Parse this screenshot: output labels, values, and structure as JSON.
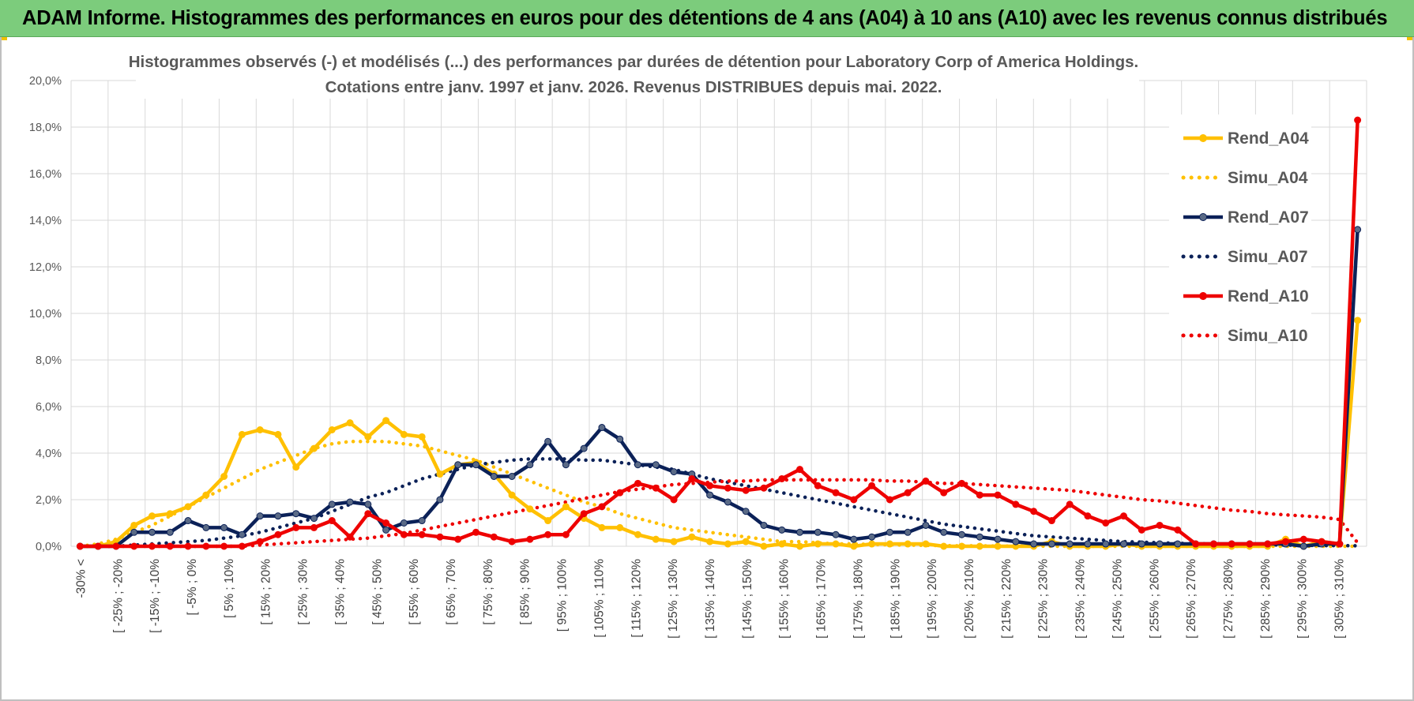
{
  "banner": {
    "title": "ADAM Informe. Histogrammes des performances en euros pour des détentions de 4 ans (A04) à 10 ans (A10) avec les revenus connus distribués"
  },
  "colors": {
    "banner_bg": "#7ccc7c",
    "a04": "#ffc000",
    "a07": "#0b2158",
    "a07_marker": "#5a6a86",
    "a10": "#ee0000",
    "grid": "#d9d9d9",
    "text": "#595959"
  },
  "chart_data": {
    "type": "line",
    "title": [
      "Histogrammes observés (-) et modélisés (...) des performances par durées de détention pour Laboratory Corp of America Holdings.",
      "Cotations entre janv. 1997 et janv. 2026. Revenus DISTRIBUES depuis mai. 2022."
    ],
    "ylim": [
      0,
      20
    ],
    "y_ticks": [
      "0,0%",
      "2,0%",
      "4,0%",
      "6,0%",
      "8,0%",
      "10,0%",
      "12,0%",
      "14,0%",
      "16,0%",
      "18,0%",
      "20,0%"
    ],
    "y_unit": "%",
    "grid": true,
    "legend_position": "right",
    "x_tick_labels": [
      "-30% <",
      "[ -25% ; -20%",
      "[ -15% ; -10%",
      "[ -5% ; 0%",
      "[ 5% ; 10%",
      "[ 15% ; 20%",
      "[ 25% ; 30%",
      "[ 35% ; 40%",
      "[ 45% ; 50%",
      "[ 55% ; 60%",
      "[ 65% ; 70%",
      "[ 75% ; 80%",
      "[ 85% ; 90%",
      "[ 95% ; 100%",
      "[ 105% ; 110%",
      "[ 115% ; 120%",
      "[ 125% ; 130%",
      "[ 135% ; 140%",
      "[ 145% ; 150%",
      "[ 155% ; 160%",
      "[ 165% ; 170%",
      "[ 175% ; 180%",
      "[ 185% ; 190%",
      "[ 195% ; 200%",
      "[ 205% ; 210%",
      "[ 215% ; 220%",
      "[ 225% ; 230%",
      "[ 235% ; 240%",
      "[ 245% ; 250%",
      "[ 255% ; 260%",
      "[ 265% ; 270%",
      "[ 275% ; 280%",
      "[ 285% ; 290%",
      "[ 295% ; 300%",
      "[ 305% ; 310%"
    ],
    "series": [
      {
        "name": "Rend_A04",
        "style": "solid-markers",
        "color": "#ffc000",
        "values": [
          0.0,
          0.0,
          0.2,
          0.9,
          1.3,
          1.4,
          1.7,
          2.2,
          3.0,
          4.8,
          5.0,
          4.8,
          3.4,
          4.2,
          5.0,
          5.3,
          4.7,
          5.4,
          4.8,
          4.7,
          3.1,
          3.5,
          3.6,
          3.1,
          2.2,
          1.6,
          1.1,
          1.7,
          1.2,
          0.8,
          0.8,
          0.5,
          0.3,
          0.2,
          0.4,
          0.2,
          0.1,
          0.2,
          0.0,
          0.1,
          0.0,
          0.1,
          0.1,
          0.0,
          0.1,
          0.1,
          0.1,
          0.1,
          0.0,
          0.0,
          0.0,
          0.0,
          0.0,
          0.0,
          0.2,
          0.0,
          0.0,
          0.0,
          0.1,
          0.0,
          0.0,
          0.0,
          0.0,
          0.0,
          0.0,
          0.0,
          0.0,
          0.3,
          0.0,
          0.2,
          0.1,
          9.7
        ]
      },
      {
        "name": "Simu_A04",
        "style": "dotted",
        "color": "#ffc000",
        "values": [
          0.0,
          0.1,
          0.3,
          0.6,
          0.9,
          1.3,
          1.7,
          2.1,
          2.5,
          2.9,
          3.3,
          3.6,
          3.9,
          4.2,
          4.4,
          4.5,
          4.5,
          4.5,
          4.4,
          4.3,
          4.1,
          3.9,
          3.7,
          3.4,
          3.1,
          2.8,
          2.5,
          2.2,
          1.9,
          1.7,
          1.4,
          1.2,
          1.0,
          0.8,
          0.7,
          0.6,
          0.5,
          0.4,
          0.3,
          0.2,
          0.2,
          0.15,
          0.1,
          0.1,
          0.08,
          0.06,
          0.05,
          0.04,
          0.03,
          0.02,
          0.02,
          0.01,
          0.01,
          0.01,
          0.0,
          0.0,
          0.0,
          0.0,
          0.0,
          0.0,
          0.0,
          0.0,
          0.0,
          0.0,
          0.0,
          0.0,
          0.0,
          0.0,
          0.0,
          0.0,
          0.0,
          0.0
        ]
      },
      {
        "name": "Rend_A07",
        "style": "solid-markers",
        "color": "#0b2158",
        "values": [
          0.0,
          0.0,
          0.0,
          0.6,
          0.6,
          0.6,
          1.1,
          0.8,
          0.8,
          0.5,
          1.3,
          1.3,
          1.4,
          1.2,
          1.8,
          1.9,
          1.8,
          0.7,
          1.0,
          1.1,
          2.0,
          3.5,
          3.5,
          3.0,
          3.0,
          3.5,
          4.5,
          3.5,
          4.2,
          5.1,
          4.6,
          3.5,
          3.5,
          3.2,
          3.1,
          2.2,
          1.9,
          1.5,
          0.9,
          0.7,
          0.6,
          0.6,
          0.5,
          0.3,
          0.4,
          0.6,
          0.6,
          0.9,
          0.6,
          0.5,
          0.4,
          0.3,
          0.2,
          0.1,
          0.1,
          0.1,
          0.1,
          0.1,
          0.1,
          0.1,
          0.1,
          0.1,
          0.1,
          0.1,
          0.1,
          0.1,
          0.1,
          0.1,
          0.0,
          0.1,
          0.1,
          13.6
        ]
      },
      {
        "name": "Simu_A07",
        "style": "dotted",
        "color": "#0b2158",
        "values": [
          0.0,
          0.0,
          0.0,
          0.05,
          0.1,
          0.15,
          0.2,
          0.25,
          0.35,
          0.45,
          0.6,
          0.8,
          1.0,
          1.2,
          1.5,
          1.8,
          2.1,
          2.3,
          2.6,
          2.9,
          3.1,
          3.3,
          3.5,
          3.6,
          3.7,
          3.75,
          3.75,
          3.75,
          3.7,
          3.7,
          3.6,
          3.5,
          3.4,
          3.3,
          3.1,
          2.9,
          2.75,
          2.6,
          2.45,
          2.3,
          2.15,
          2.0,
          1.85,
          1.7,
          1.55,
          1.4,
          1.25,
          1.1,
          0.95,
          0.85,
          0.75,
          0.65,
          0.55,
          0.45,
          0.4,
          0.35,
          0.3,
          0.25,
          0.2,
          0.18,
          0.15,
          0.13,
          0.11,
          0.1,
          0.08,
          0.07,
          0.06,
          0.05,
          0.04,
          0.03,
          0.03,
          0.02
        ]
      },
      {
        "name": "Rend_A10",
        "style": "solid-markers",
        "color": "#ee0000",
        "values": [
          0.0,
          0.0,
          0.0,
          0.0,
          0.0,
          0.0,
          0.0,
          0.0,
          0.0,
          0.0,
          0.2,
          0.5,
          0.8,
          0.8,
          1.1,
          0.4,
          1.4,
          1.0,
          0.5,
          0.5,
          0.4,
          0.3,
          0.6,
          0.4,
          0.2,
          0.3,
          0.5,
          0.5,
          1.4,
          1.7,
          2.3,
          2.7,
          2.5,
          2.0,
          2.9,
          2.6,
          2.5,
          2.4,
          2.5,
          2.9,
          3.3,
          2.6,
          2.3,
          2.0,
          2.6,
          2.0,
          2.3,
          2.8,
          2.3,
          2.7,
          2.2,
          2.2,
          1.8,
          1.5,
          1.1,
          1.8,
          1.3,
          1.0,
          1.3,
          0.7,
          0.9,
          0.7,
          0.1,
          0.1,
          0.1,
          0.1,
          0.1,
          0.2,
          0.3,
          0.2,
          0.1,
          18.3
        ]
      },
      {
        "name": "Simu_A10",
        "style": "dotted",
        "color": "#ee0000",
        "values": [
          0.0,
          0.0,
          0.0,
          0.0,
          0.0,
          0.0,
          0.0,
          0.0,
          0.0,
          0.0,
          0.05,
          0.1,
          0.15,
          0.2,
          0.25,
          0.3,
          0.35,
          0.45,
          0.55,
          0.7,
          0.85,
          1.0,
          1.15,
          1.3,
          1.45,
          1.6,
          1.75,
          1.9,
          2.05,
          2.2,
          2.35,
          2.45,
          2.55,
          2.65,
          2.7,
          2.75,
          2.8,
          2.8,
          2.85,
          2.85,
          2.85,
          2.85,
          2.85,
          2.85,
          2.85,
          2.8,
          2.8,
          2.75,
          2.7,
          2.7,
          2.65,
          2.6,
          2.55,
          2.5,
          2.45,
          2.4,
          2.3,
          2.2,
          2.1,
          2.0,
          1.95,
          1.85,
          1.75,
          1.65,
          1.55,
          1.5,
          1.4,
          1.35,
          1.3,
          1.25,
          1.15,
          0.15
        ]
      }
    ]
  }
}
